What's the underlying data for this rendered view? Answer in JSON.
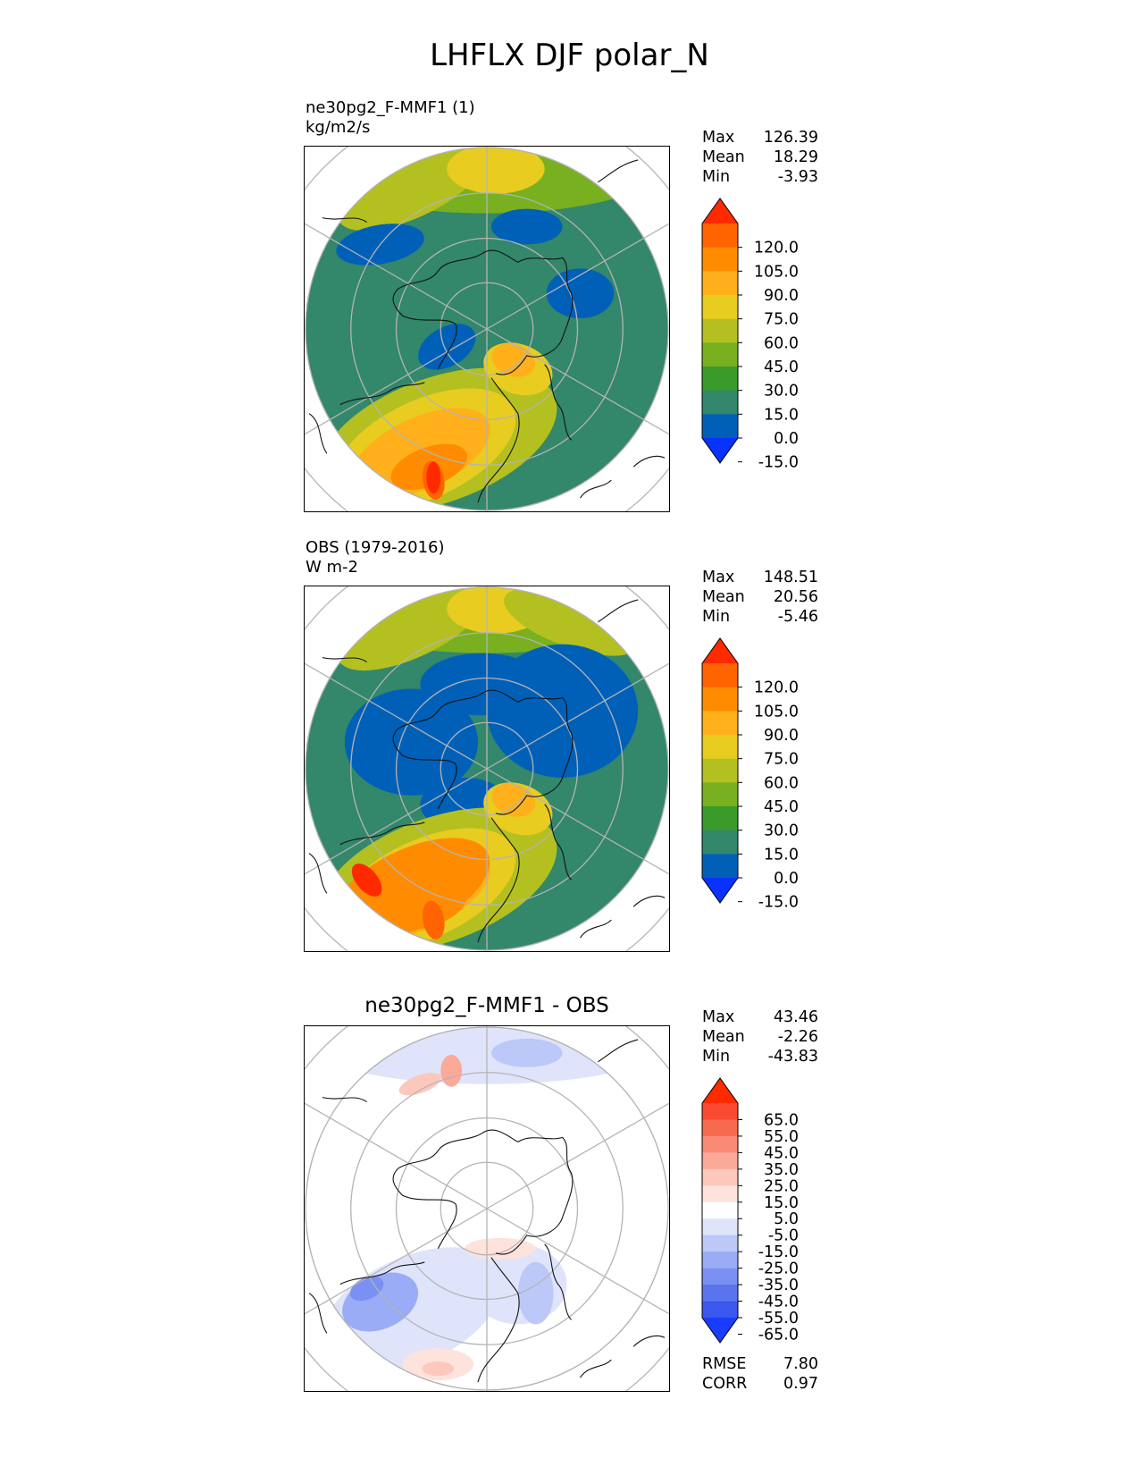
{
  "figure": {
    "title": "LHFLX DJF polar_N"
  },
  "chart_data": [
    {
      "type": "heatmap",
      "projection": "north polar stereographic",
      "title": "ne30pg2_F-MMF1 (1)",
      "units": "kg/m2/s",
      "stats": {
        "max_label": "Max",
        "max": "126.39",
        "mean_label": "Mean",
        "mean": "18.29",
        "min_label": "Min",
        "min": "-3.93"
      },
      "colorbar": {
        "ticks": [
          "120.0",
          "105.0",
          "90.0",
          "75.0",
          "60.0",
          "45.0",
          "30.0",
          "15.0",
          "0.0",
          "-15.0"
        ],
        "colors": [
          "#ff2a00",
          "#ff6400",
          "#ff8c00",
          "#ffb01a",
          "#e8cc20",
          "#b4c020",
          "#78b020",
          "#3a9a2a",
          "#33876a",
          "#0060b8",
          "#0a32ff"
        ],
        "extend": "both"
      }
    },
    {
      "type": "heatmap",
      "projection": "north polar stereographic",
      "title": "OBS (1979-2016)",
      "units": "W m-2",
      "stats": {
        "max_label": "Max",
        "max": "148.51",
        "mean_label": "Mean",
        "mean": "20.56",
        "min_label": "Min",
        "min": "-5.46"
      },
      "colorbar": {
        "ticks": [
          "120.0",
          "105.0",
          "90.0",
          "75.0",
          "60.0",
          "45.0",
          "30.0",
          "15.0",
          "0.0",
          "-15.0"
        ],
        "colors": [
          "#ff2a00",
          "#ff6400",
          "#ff8c00",
          "#ffb01a",
          "#e8cc20",
          "#b4c020",
          "#78b020",
          "#3a9a2a",
          "#33876a",
          "#0060b8",
          "#0a32ff"
        ],
        "extend": "both"
      }
    },
    {
      "type": "heatmap",
      "projection": "north polar stereographic",
      "title": "ne30pg2_F-MMF1 - OBS",
      "stats": {
        "max_label": "Max",
        "max": "43.46",
        "mean_label": "Mean",
        "mean": "-2.26",
        "min_label": "Min",
        "min": "-43.83"
      },
      "metrics": {
        "rmse_label": "RMSE",
        "rmse": "7.80",
        "corr_label": "CORR",
        "corr": "0.97"
      },
      "colorbar": {
        "ticks": [
          "65.0",
          "55.0",
          "45.0",
          "35.0",
          "25.0",
          "15.0",
          "5.0",
          "-5.0",
          "-15.0",
          "-25.0",
          "-35.0",
          "-45.0",
          "-55.0",
          "-65.0"
        ],
        "colors": [
          "#ff2a00",
          "#fa4a30",
          "#f86a50",
          "#f98a78",
          "#fbaa9a",
          "#fcc8bc",
          "#fde3dc",
          "#ffffff",
          "#dfe4fb",
          "#bcc8f8",
          "#9aacf5",
          "#7a90f2",
          "#5a74ef",
          "#3a58ee",
          "#1a3cff"
        ],
        "extend": "both"
      }
    }
  ]
}
